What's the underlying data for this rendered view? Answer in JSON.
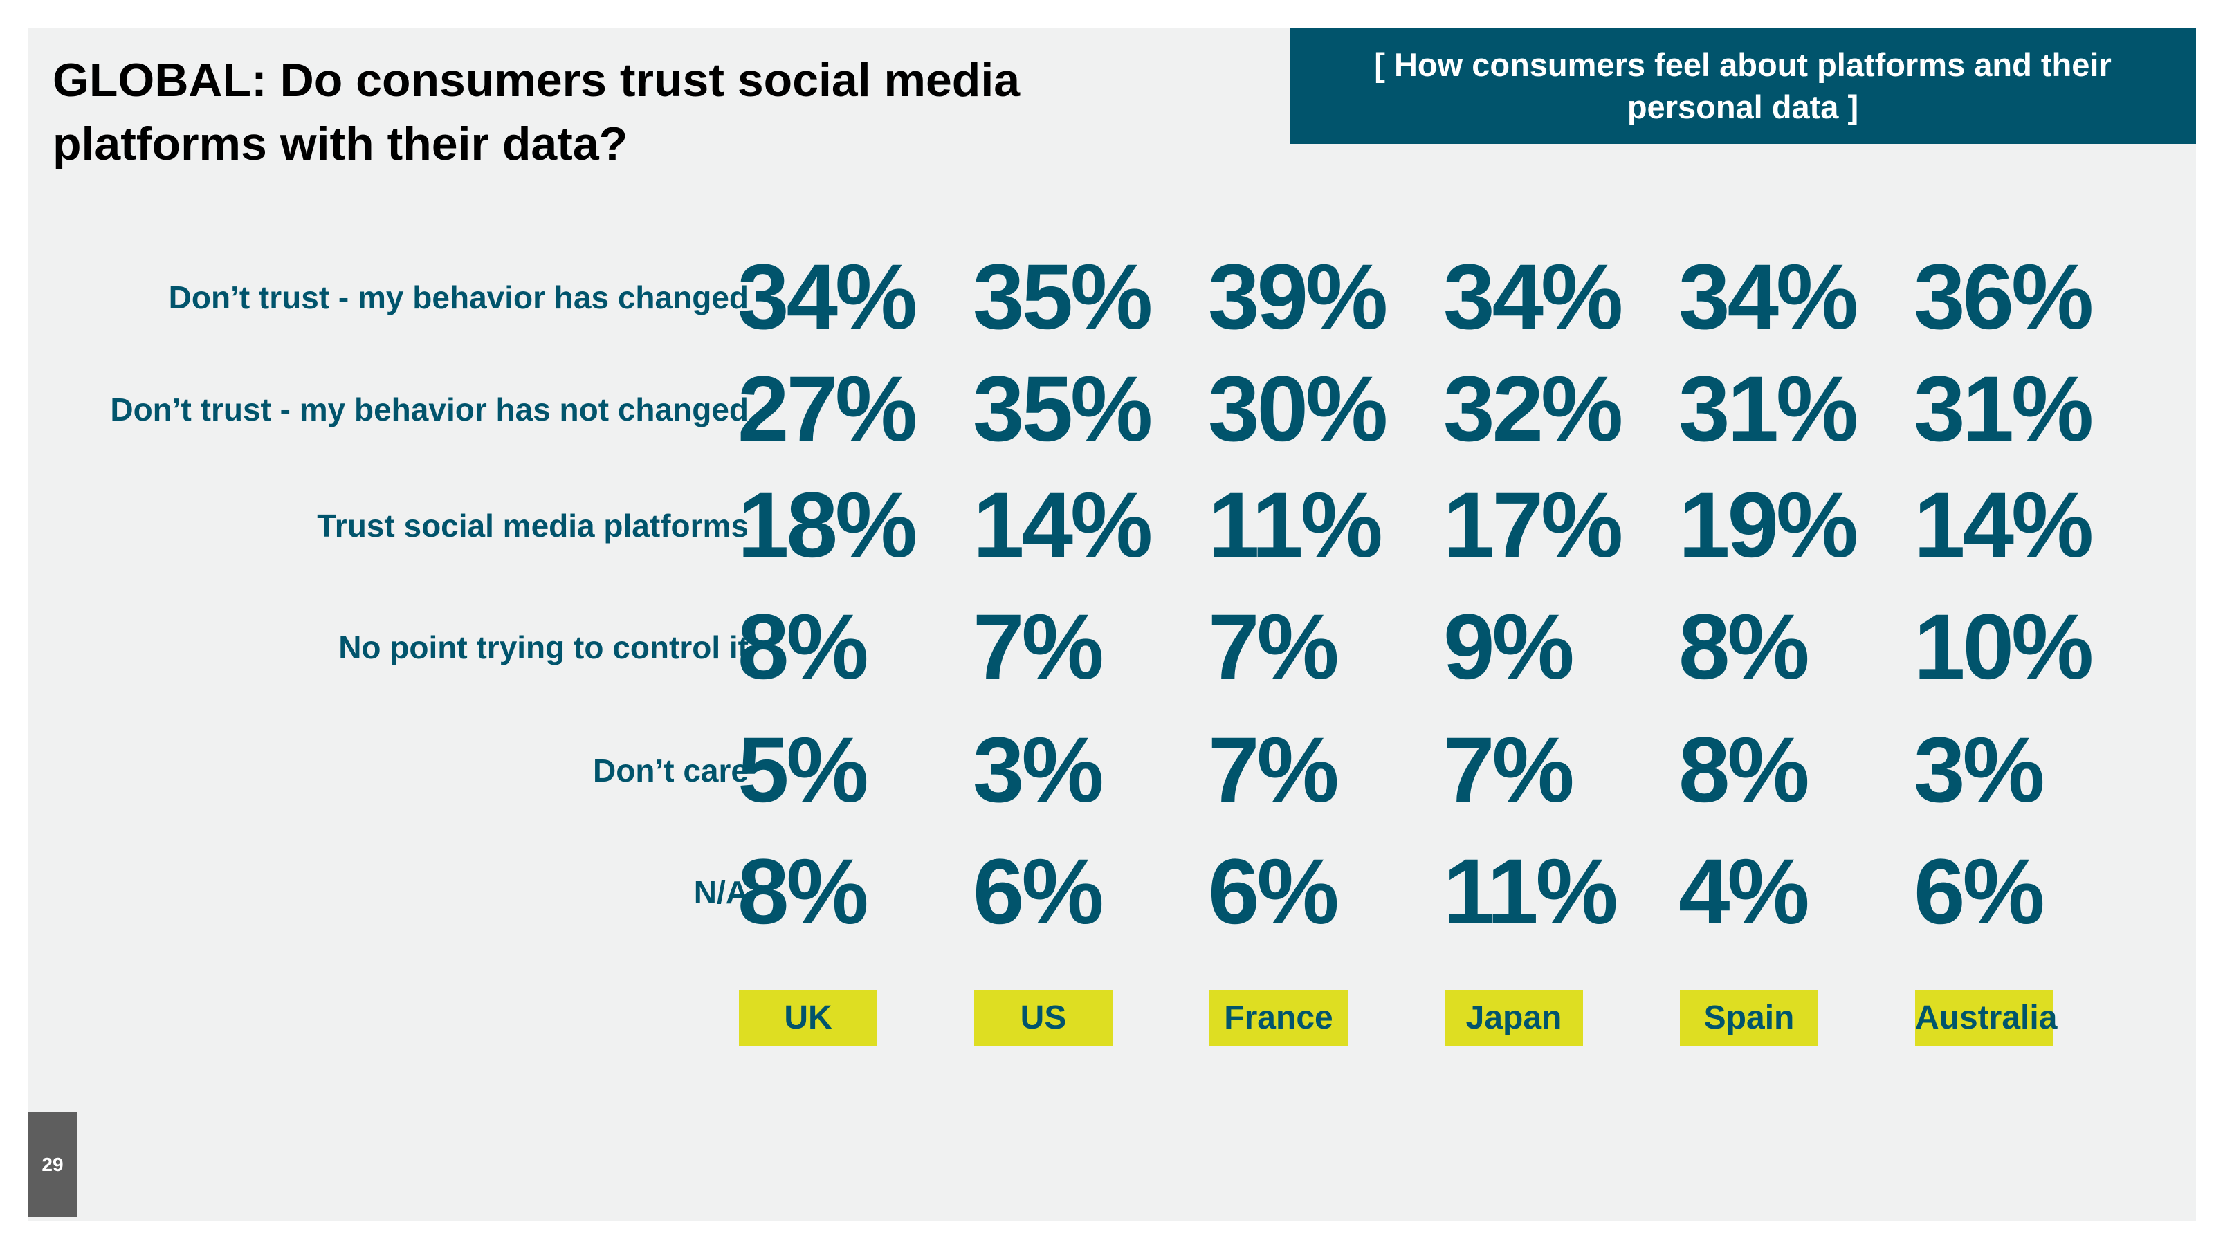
{
  "slide": {
    "title": "GLOBAL: Do consumers trust social media platforms with their data?",
    "section_label": "[ How consumers feel about platforms and their personal data ]",
    "page_number": "29",
    "colors": {
      "background": "#f0f1f1",
      "primary": "#01546c",
      "country_highlight": "#dede22",
      "page_tab": "#5e5e5e"
    }
  },
  "chart_data": {
    "type": "table",
    "title": "GLOBAL: Do consumers trust social media platforms with their data?",
    "columns": [
      "UK",
      "US",
      "France",
      "Japan",
      "Spain",
      "Australia"
    ],
    "rows": [
      "Don’t trust - my behavior has changed",
      "Don’t trust - my behavior has not changed",
      "Trust social media platforms",
      "No point trying to control it",
      "Don’t care",
      "N/A"
    ],
    "values": [
      [
        34,
        35,
        39,
        34,
        34,
        36
      ],
      [
        27,
        35,
        30,
        32,
        31,
        31
      ],
      [
        18,
        14,
        11,
        17,
        19,
        14
      ],
      [
        8,
        7,
        7,
        9,
        8,
        10
      ],
      [
        5,
        3,
        7,
        7,
        8,
        3
      ],
      [
        8,
        6,
        6,
        11,
        4,
        6
      ]
    ],
    "value_labels": [
      [
        "34%",
        "35%",
        "39%",
        "34%",
        "34%",
        "36%"
      ],
      [
        "27%",
        "35%",
        "30%",
        "32%",
        "31%",
        "31%"
      ],
      [
        "18%",
        "14%",
        "11%",
        "17%",
        "19%",
        "14%"
      ],
      [
        "8%",
        "7%",
        "7%",
        "9%",
        "8%",
        "10%"
      ],
      [
        "5%",
        "3%",
        "7%",
        "7%",
        "8%",
        "3%"
      ],
      [
        "8%",
        "6%",
        "6%",
        "11%",
        "4%",
        "6%"
      ]
    ],
    "unit": "%"
  }
}
